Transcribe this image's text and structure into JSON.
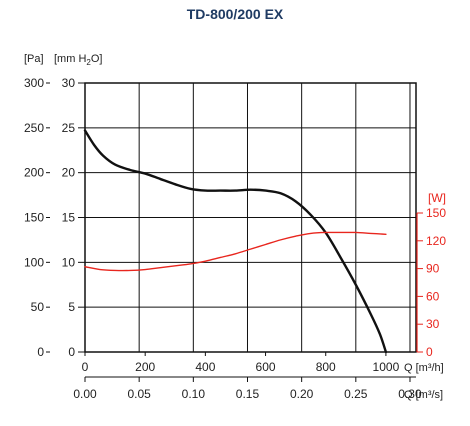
{
  "chart_data": {
    "type": "line",
    "title": "TD-800/200 EX",
    "x_axis": {
      "label": "Q [m³/h]",
      "range": [
        0,
        1100
      ],
      "ticks": [
        0,
        200,
        400,
        600,
        800,
        1000
      ],
      "tick_labels": [
        "0",
        "200",
        "400",
        "600",
        "800",
        "1000"
      ]
    },
    "x_axis_secondary": {
      "label": "Q [m³/s]",
      "tick_labels": [
        "0.00",
        "0.05",
        "0.10",
        "0.15",
        "0.20",
        "0.25",
        "0.30"
      ]
    },
    "y_axis_pa": {
      "label": "[Pa]",
      "range": [
        0,
        300
      ],
      "tick_labels": [
        "0",
        "50",
        "100",
        "150",
        "200",
        "250",
        "300"
      ]
    },
    "y_axis_mmh2o": {
      "label_main": "[mm H",
      "label_sub": "2",
      "label_end": "O]",
      "tick_labels": [
        "0",
        "5",
        "10",
        "15",
        "20",
        "25",
        "30"
      ]
    },
    "y_axis_power": {
      "label": "[W]",
      "range": [
        0,
        150
      ],
      "ticks": [
        0,
        30,
        60,
        90,
        120,
        150
      ],
      "tick_labels": [
        "0",
        "30",
        "60",
        "90",
        "120",
        "150"
      ],
      "color": "#e8261e"
    },
    "grid": true,
    "series": [
      {
        "axis": "pressure",
        "color": "#111111",
        "points": [
          [
            0,
            247
          ],
          [
            30,
            231
          ],
          [
            60,
            219
          ],
          [
            100,
            209
          ],
          [
            150,
            203
          ],
          [
            200,
            199
          ],
          [
            250,
            193
          ],
          [
            300,
            187
          ],
          [
            350,
            182
          ],
          [
            400,
            180
          ],
          [
            450,
            180
          ],
          [
            500,
            180
          ],
          [
            550,
            181
          ],
          [
            600,
            180
          ],
          [
            650,
            177
          ],
          [
            700,
            168
          ],
          [
            750,
            153
          ],
          [
            800,
            133
          ],
          [
            850,
            105
          ],
          [
            900,
            75
          ],
          [
            950,
            42
          ],
          [
            980,
            20
          ],
          [
            1000,
            0
          ]
        ]
      },
      {
        "axis": "power",
        "color": "#e8261e",
        "points": [
          [
            0,
            92
          ],
          [
            50,
            89
          ],
          [
            100,
            88
          ],
          [
            150,
            88
          ],
          [
            200,
            89
          ],
          [
            250,
            91
          ],
          [
            300,
            93
          ],
          [
            350,
            95
          ],
          [
            400,
            98
          ],
          [
            450,
            102
          ],
          [
            500,
            106
          ],
          [
            550,
            111
          ],
          [
            600,
            116
          ],
          [
            650,
            121
          ],
          [
            700,
            125
          ],
          [
            750,
            128
          ],
          [
            800,
            129
          ],
          [
            850,
            129
          ],
          [
            900,
            129
          ],
          [
            950,
            128
          ],
          [
            1000,
            127
          ]
        ]
      }
    ]
  }
}
